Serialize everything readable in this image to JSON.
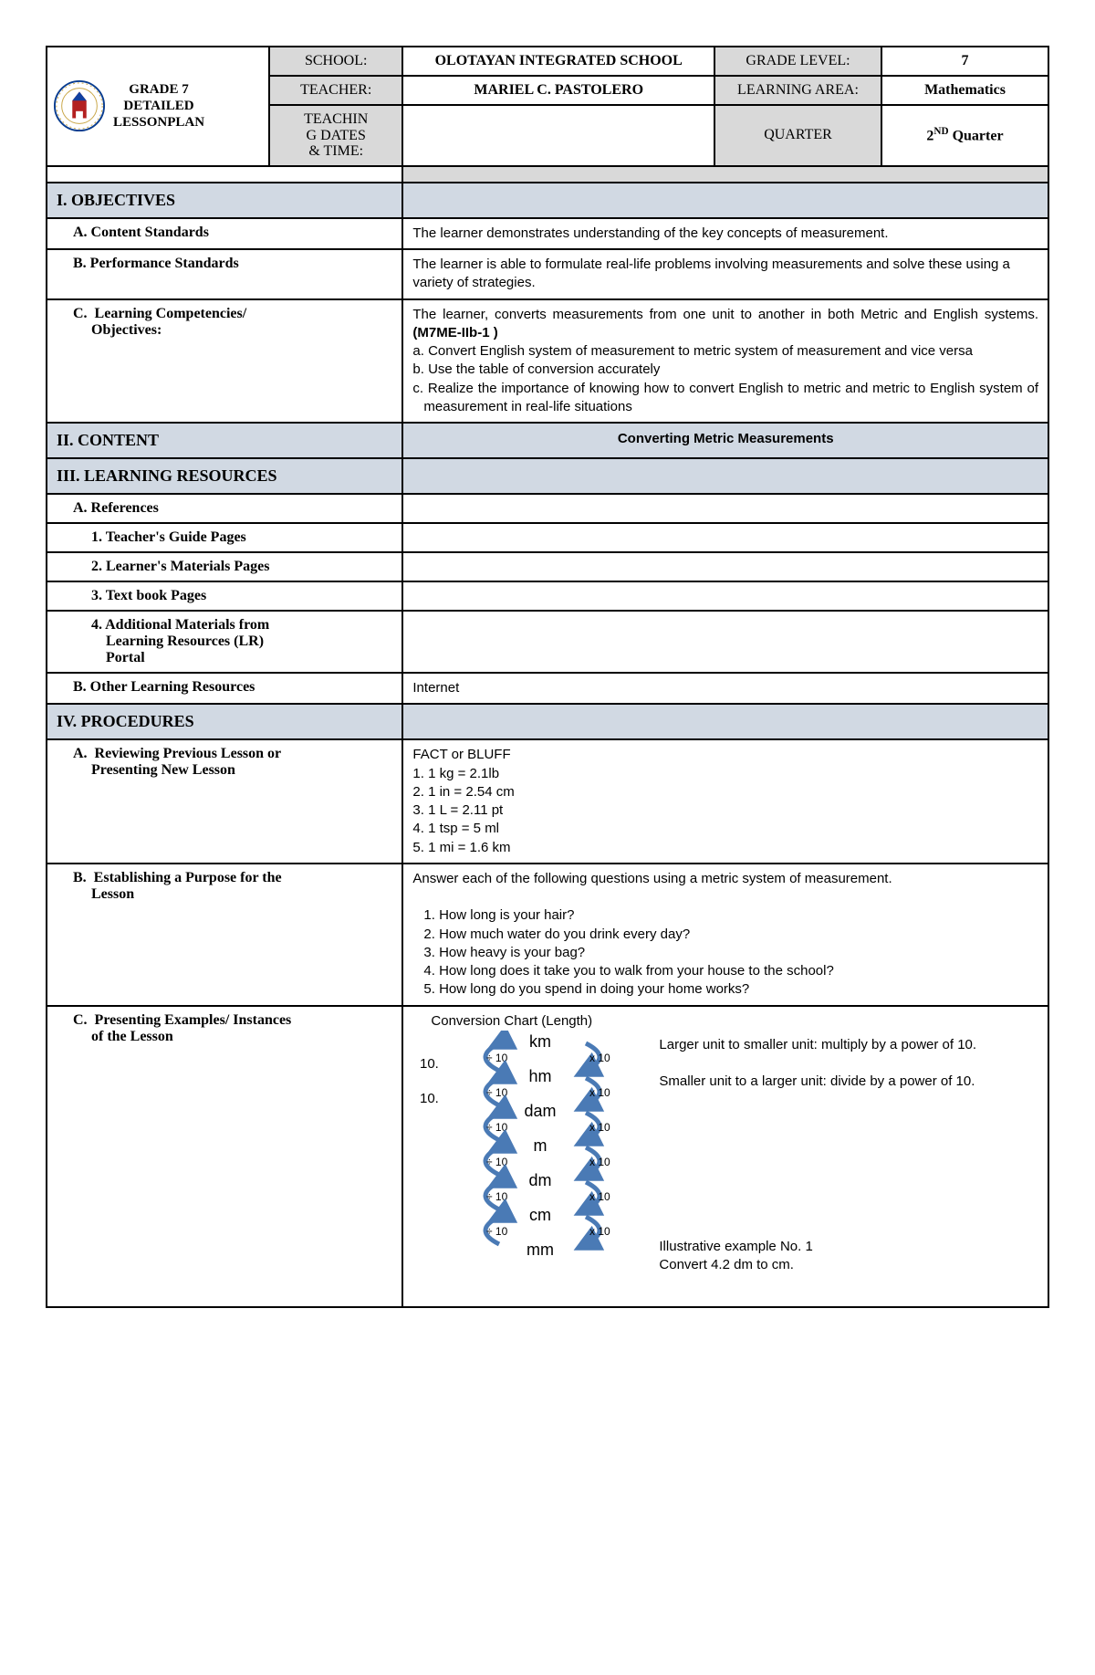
{
  "header": {
    "title_line1": "GRADE 7",
    "title_line2": "DETAILED",
    "title_line3": "LESSONPLAN",
    "labels": {
      "school": "SCHOOL:",
      "teacher": "TEACHER:",
      "dates": "TEACHIN G DATES & TIME:",
      "grade_level": "GRADE LEVEL:",
      "learning_area": "LEARNING AREA:",
      "quarter": "QUARTER"
    },
    "values": {
      "school": "OLOTAYAN INTEGRATED SCHOOL",
      "teacher": "MARIEL C. PASTOLERO",
      "dates": "",
      "grade_level": "7",
      "learning_area": "Mathematics",
      "quarter_prefix": "2",
      "quarter_sup": "ND",
      "quarter_suffix": " Quarter"
    }
  },
  "sections": {
    "objectives": "I. OBJECTIVES",
    "content": "II. CONTENT",
    "resources": "III. LEARNING RESOURCES",
    "procedures": "IV. PROCEDURES"
  },
  "objectives": {
    "content_standards_label": "A.  Content Standards",
    "content_standards": "The learner demonstrates understanding of the key concepts of measurement.",
    "performance_standards_label": "B.  Performance Standards",
    "performance_standards": "The learner is able to formulate real-life problems involving measurements and solve these using a variety of strategies.",
    "competencies_label": "C.  Learning Competencies/ Objectives:",
    "competencies_intro1": "The learner, converts measurements from one unit to another in both Metric and English systems. ",
    "competencies_code": "(M7ME-IIb-1 )",
    "competencies_a": "a. Convert English system of measurement to metric system of measurement and vice versa",
    "competencies_b": "b. Use the table of conversion accurately",
    "competencies_c": "c. Realize the importance of knowing how to convert English to metric and metric  to English system of measurement in real-life situations"
  },
  "content_value": "Converting Metric Measurements",
  "resources": {
    "references_label": "A.  References",
    "teachers_guide_label": "1. Teacher's Guide Pages",
    "learners_materials_label": "2. Learner's Materials Pages",
    "textbook_label": "3. Text book Pages",
    "additional_label": "4. Additional Materials from Learning Resources (LR) Portal",
    "other_label": "B.  Other Learning Resources",
    "other_value": "Internet"
  },
  "procedures": {
    "a_label": "A.  Reviewing Previous Lesson or Presenting New Lesson",
    "a_title": "FACT or BLUFF",
    "a_items": [
      "1. 1 kg = 2.1lb",
      "2. 1 in = 2.54 cm",
      "3. 1 L = 2.11 pt",
      "4. 1 tsp = 5 ml",
      "5. 1 mi = 1.6 km"
    ],
    "b_label": "B.  Establishing a Purpose for the Lesson",
    "b_intro": "Answer each of the following questions using a metric system of measurement.",
    "b_items": [
      "1. How long is your hair?",
      "2. How much water do you drink every day?",
      "3. How heavy is your  bag?",
      "4. How long does it take you to walk from your house to the school?",
      "5. How long do you spend in doing your home works?"
    ],
    "c_label": "C.  Presenting Examples/ Instances of the Lesson",
    "c_chart_title": "Conversion Chart (Length)",
    "c_rule1": "Larger unit to smaller unit: multiply by a power of 10.",
    "c_rule2": "Smaller unit to a larger unit: divide by a power of 10.",
    "c_example_title": "Illustrative example No. 1",
    "c_example": "Convert 4.2 dm to cm."
  },
  "chart": {
    "units": [
      "km",
      "hm",
      "dam",
      "m",
      "dm",
      "cm",
      "mm"
    ],
    "left_label": "÷ 10",
    "right_label": "x 10",
    "arrow_color": "#4a7ab5",
    "text_color": "#000000",
    "left_ten_label": "10."
  }
}
